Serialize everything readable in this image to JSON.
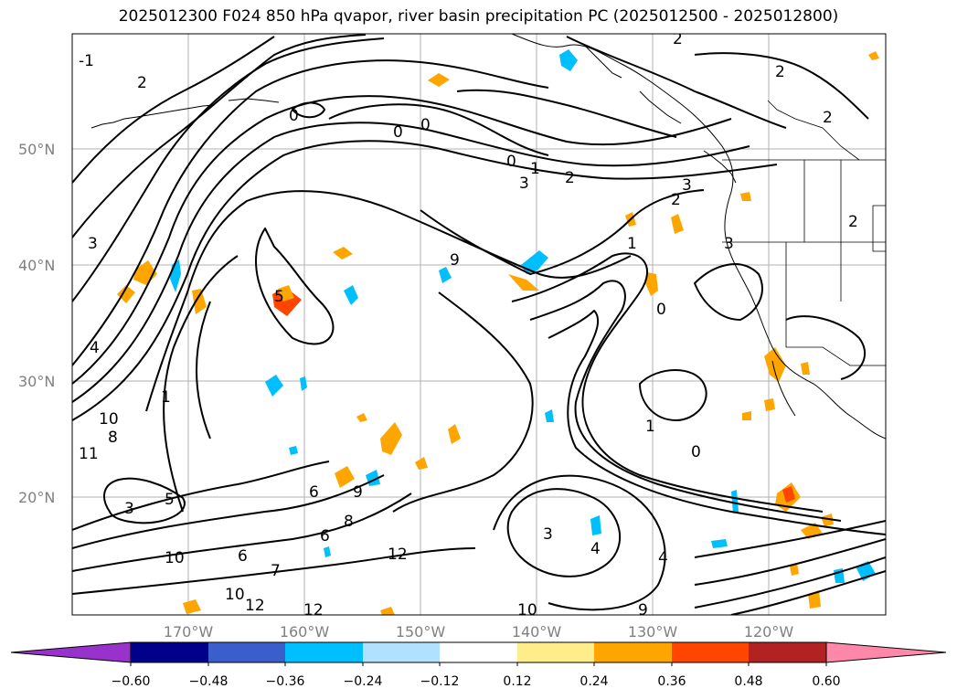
{
  "title": "2025012300 F024 850 hPa qvapor, river basin precipitation PC (2025012500 - 2025012800)",
  "map": {
    "lat_labels": [
      "50°N",
      "40°N",
      "30°N",
      "20°N"
    ],
    "lon_labels": [
      "170°W",
      "160°W",
      "150°W",
      "140°W",
      "130°W",
      "120°W"
    ],
    "contour_labels": [
      "-1",
      "2",
      "3",
      "4",
      "0",
      "0",
      "0",
      "1",
      "2",
      "3",
      "2",
      "3",
      "2",
      "2",
      "2",
      "0",
      "1",
      "1",
      "0",
      "0",
      "3",
      "5",
      "8",
      "9",
      "10",
      "11",
      "1",
      "3",
      "5",
      "6",
      "6",
      "6",
      "8",
      "9",
      "7",
      "10",
      "12",
      "12",
      "12",
      "10",
      "9",
      "10",
      "3",
      "4",
      "4",
      "2"
    ]
  },
  "colorbar": {
    "ticks": [
      "−0.60",
      "−0.48",
      "−0.36",
      "−0.24",
      "−0.12",
      "0.12",
      "0.24",
      "0.36",
      "0.48",
      "0.60"
    ],
    "under_color": "#9932cc",
    "over_color": "#ff88aa",
    "colors": [
      "#00008b",
      "#3a5fcd",
      "#00bfff",
      "#b0e2ff",
      "#ffffff",
      "#ffec8b",
      "#ffa500",
      "#ff4500",
      "#b22222"
    ]
  }
}
